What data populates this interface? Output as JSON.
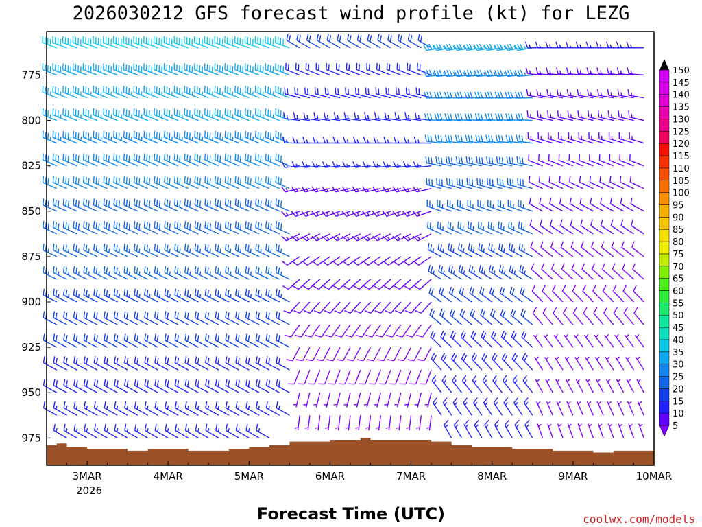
{
  "chart_data": {
    "type": "wind-barb-profile",
    "title": "2026030212 GFS forecast wind profile (kt) for LEZG",
    "xlabel": "Forecast Time (UTC)",
    "credit": "coolwx.com/models",
    "x_ticks": [
      "3MAR",
      "4MAR",
      "5MAR",
      "6MAR",
      "7MAR",
      "8MAR",
      "9MAR",
      "10MAR"
    ],
    "x_year_label": "2026",
    "y_ticks": [
      775,
      800,
      825,
      850,
      875,
      900,
      925,
      950,
      975
    ],
    "ylim": [
      990,
      751
    ],
    "xlim": [
      "2026-03-02T12",
      "2026-03-10T00"
    ],
    "colorbar": {
      "units": "kt",
      "ticks": [
        5,
        10,
        15,
        20,
        25,
        30,
        35,
        40,
        45,
        50,
        55,
        60,
        65,
        70,
        75,
        80,
        85,
        90,
        95,
        100,
        105,
        110,
        115,
        120,
        125,
        130,
        135,
        140,
        145,
        150
      ],
      "colors": [
        "#8000ff",
        "#6000ff",
        "#2020ff",
        "#1040e8",
        "#1066e6",
        "#1088ee",
        "#10a8ee",
        "#10c8e8",
        "#10e0c0",
        "#10e8a0",
        "#20e870",
        "#30ee40",
        "#50f020",
        "#80f000",
        "#c0f000",
        "#f0f000",
        "#f8e000",
        "#f8c800",
        "#f8b000",
        "#f89000",
        "#f87000",
        "#f85000",
        "#f83000",
        "#f81000",
        "#f0005a",
        "#e8008a",
        "#e800b0",
        "#e000d0",
        "#d800e8",
        "#d000f8"
      ]
    },
    "terrain_fill": "#9c5228",
    "pressure_levels": [
      760,
      775,
      787.5,
      800,
      812.5,
      825,
      837.5,
      850,
      862.5,
      875,
      887.5,
      900,
      912.5,
      925,
      937.5,
      950,
      962.5,
      975
    ],
    "series": [
      {
        "period": "2026-03-02T12 to 2026-03-05T15",
        "direction_deg_upper": 290,
        "direction_deg_lower": 300,
        "speed_kt_upper": 40,
        "speed_kt_lower": 15
      },
      {
        "period": "2026-03-05T15 to 2026-03-07T09",
        "direction_deg_upper": 300,
        "direction_deg_lower": 180,
        "speed_kt_upper": 20,
        "speed_kt_lower": 5
      },
      {
        "period": "2026-03-07T09 to 2026-03-08T15",
        "direction_deg_upper": 260,
        "direction_deg_lower": 330,
        "speed_kt_upper": 35,
        "speed_kt_lower": 15
      },
      {
        "period": "2026-03-08T15 to 2026-03-10T00",
        "direction_deg_upper": 270,
        "direction_deg_lower": 340,
        "speed_kt_upper": 15,
        "speed_kt_lower": 5
      }
    ],
    "surface_pressure": [
      [
        "2026-03-02T12",
        979
      ],
      [
        "2026-03-02T15",
        978
      ],
      [
        "2026-03-02T18",
        980
      ],
      [
        "2026-03-03T00",
        981
      ],
      [
        "2026-03-03T06",
        981
      ],
      [
        "2026-03-03T12",
        982
      ],
      [
        "2026-03-03T18",
        981
      ],
      [
        "2026-03-04T00",
        981
      ],
      [
        "2026-03-04T06",
        982
      ],
      [
        "2026-03-04T12",
        982
      ],
      [
        "2026-03-04T18",
        981
      ],
      [
        "2026-03-05T00",
        980
      ],
      [
        "2026-03-05T06",
        979
      ],
      [
        "2026-03-05T12",
        977
      ],
      [
        "2026-03-05T18",
        977
      ],
      [
        "2026-03-06T00",
        976
      ],
      [
        "2026-03-06T06",
        976
      ],
      [
        "2026-03-06T09",
        975
      ],
      [
        "2026-03-06T12",
        976
      ],
      [
        "2026-03-06T18",
        976
      ],
      [
        "2026-03-07T00",
        976
      ],
      [
        "2026-03-07T06",
        977
      ],
      [
        "2026-03-07T12",
        979
      ],
      [
        "2026-03-07T18",
        980
      ],
      [
        "2026-03-08T00",
        980
      ],
      [
        "2026-03-08T06",
        981
      ],
      [
        "2026-03-08T12",
        981
      ],
      [
        "2026-03-08T18",
        982
      ],
      [
        "2026-03-09T00",
        982
      ],
      [
        "2026-03-09T06",
        983
      ],
      [
        "2026-03-09T12",
        982
      ],
      [
        "2026-03-09T18",
        982
      ],
      [
        "2026-03-10T00",
        983
      ]
    ]
  }
}
